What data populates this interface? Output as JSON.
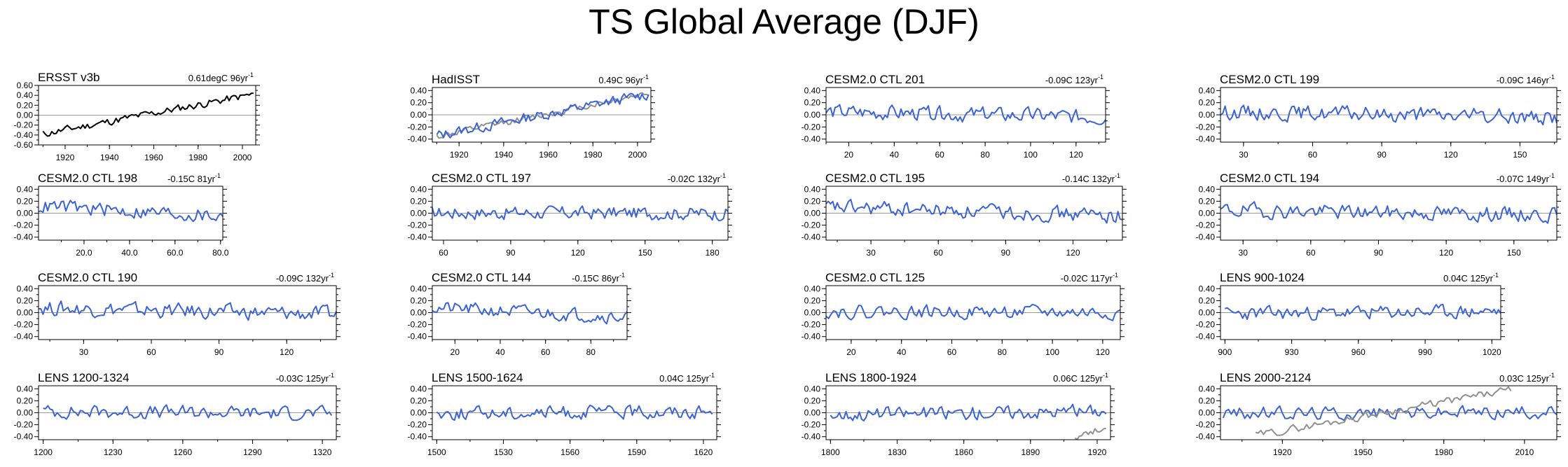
{
  "title": "TS Global Average (DJF)",
  "colors": {
    "model": "#3b63d6",
    "observed": "#000000",
    "overlay": "#909090",
    "zero_line": "#9a9a9a",
    "axes": "#000000"
  },
  "chart_data": [
    {
      "type": "line",
      "title": "ERSST v3b",
      "stat": "0.61degC 96yr",
      "stat_exp": "-1",
      "ylim": [
        -0.6,
        0.6
      ],
      "yticks": [
        -0.6,
        -0.4,
        -0.2,
        0,
        0.2,
        0.4,
        0.6
      ],
      "ytick_labels": [
        "-0.60",
        "-0.40",
        "-0.20",
        "0.00",
        "0.20",
        "0.40",
        "0.60"
      ],
      "xlim": [
        1908,
        2006
      ],
      "xticks": [
        1920,
        1940,
        1960,
        1980,
        2000
      ],
      "xtick_labels": [
        "1920",
        "1940",
        "1960",
        "1980",
        "2000"
      ],
      "series": [
        {
          "style": "observed",
          "x": [
            1910,
            2005
          ],
          "trend": [
            -0.38,
            0.42
          ],
          "amplitude": 0.07,
          "seed": 11
        }
      ]
    },
    {
      "type": "line",
      "title": "HadISST",
      "stat": "0.49C 96yr",
      "stat_exp": "-1",
      "ylim": [
        -0.45,
        0.45
      ],
      "yticks": [
        -0.4,
        -0.2,
        0,
        0.2,
        0.4
      ],
      "ytick_labels": [
        "-0.40",
        "-0.20",
        "0.00",
        "0.20",
        "0.40"
      ],
      "xlim": [
        1908,
        2006
      ],
      "xticks": [
        1920,
        1940,
        1960,
        1980,
        2000
      ],
      "xtick_labels": [
        "1920",
        "1940",
        "1960",
        "1980",
        "2000"
      ],
      "series": [
        {
          "style": "overlay",
          "x": [
            1910,
            2005
          ],
          "trend": [
            -0.36,
            0.36
          ],
          "amplitude": 0.05,
          "seed": 12
        },
        {
          "style": "model",
          "x": [
            1910,
            2005
          ],
          "trend": [
            -0.34,
            0.34
          ],
          "amplitude": 0.08,
          "seed": 13
        }
      ]
    },
    {
      "type": "line",
      "title": "CESM2.0 CTL 201",
      "stat": "-0.09C 123yr",
      "stat_exp": "-1",
      "ylim": [
        -0.45,
        0.45
      ],
      "yticks": [
        -0.4,
        -0.2,
        0,
        0.2,
        0.4
      ],
      "ytick_labels": [
        "-0.40",
        "-0.20",
        "0.00",
        "0.20",
        "0.40"
      ],
      "xlim": [
        10,
        133
      ],
      "xticks": [
        20,
        40,
        60,
        80,
        100,
        120
      ],
      "xtick_labels": [
        "20",
        "40",
        "60",
        "80",
        "100",
        "120"
      ],
      "series": [
        {
          "style": "model",
          "x": [
            10,
            133
          ],
          "trend": [
            0.05,
            -0.04
          ],
          "amplitude": 0.11,
          "seed": 14
        }
      ]
    },
    {
      "type": "line",
      "title": "CESM2.0 CTL 199",
      "stat": "-0.09C 146yr",
      "stat_exp": "-1",
      "ylim": [
        -0.45,
        0.45
      ],
      "yticks": [
        -0.4,
        -0.2,
        0,
        0.2,
        0.4
      ],
      "ytick_labels": [
        "-0.40",
        "-0.20",
        "0.00",
        "0.20",
        "0.40"
      ],
      "xlim": [
        20,
        166
      ],
      "xticks": [
        30,
        60,
        90,
        120,
        150
      ],
      "xtick_labels": [
        "30",
        "60",
        "90",
        "120",
        "150"
      ],
      "series": [
        {
          "style": "model",
          "x": [
            20,
            166
          ],
          "trend": [
            0.05,
            -0.04
          ],
          "amplitude": 0.11,
          "seed": 15
        }
      ]
    },
    {
      "type": "line",
      "title": "CESM2.0 CTL 198",
      "stat": "-0.15C 81yr",
      "stat_exp": "-1",
      "ylim": [
        -0.45,
        0.45
      ],
      "yticks": [
        -0.4,
        -0.2,
        0,
        0.2,
        0.4
      ],
      "ytick_labels": [
        "-0.40",
        "-0.20",
        "0.00",
        "0.20",
        "0.40"
      ],
      "xlim": [
        0,
        81
      ],
      "xticks": [
        20,
        40,
        60,
        80
      ],
      "xtick_labels": [
        "20.0",
        "40.0",
        "60.0",
        "80.0"
      ],
      "series": [
        {
          "style": "model",
          "x": [
            0,
            81
          ],
          "trend": [
            0.12,
            -0.05
          ],
          "amplitude": 0.11,
          "seed": 16
        }
      ]
    },
    {
      "type": "line",
      "title": "CESM2.0 CTL 197",
      "stat": "-0.02C 132yr",
      "stat_exp": "-1",
      "ylim": [
        -0.45,
        0.45
      ],
      "yticks": [
        -0.4,
        -0.2,
        0,
        0.2,
        0.4
      ],
      "ytick_labels": [
        "-0.40",
        "-0.20",
        "0.00",
        "0.20",
        "0.40"
      ],
      "xlim": [
        55,
        187
      ],
      "xticks": [
        60,
        90,
        120,
        150,
        180
      ],
      "xtick_labels": [
        "60",
        "90",
        "120",
        "150",
        "180"
      ],
      "series": [
        {
          "style": "model",
          "x": [
            55,
            187
          ],
          "trend": [
            0.01,
            0.0
          ],
          "amplitude": 0.1,
          "seed": 17
        }
      ]
    },
    {
      "type": "line",
      "title": "CESM2.0 CTL 195",
      "stat": "-0.14C 132yr",
      "stat_exp": "-1",
      "ylim": [
        -0.45,
        0.45
      ],
      "yticks": [
        -0.4,
        -0.2,
        0,
        0.2,
        0.4
      ],
      "ytick_labels": [
        "-0.40",
        "-0.20",
        "0.00",
        "0.20",
        "0.40"
      ],
      "xlim": [
        10,
        142
      ],
      "xticks": [
        30,
        60,
        90,
        120
      ],
      "xtick_labels": [
        "30",
        "60",
        "90",
        "120"
      ],
      "series": [
        {
          "style": "model",
          "x": [
            10,
            142
          ],
          "trend": [
            0.1,
            -0.04
          ],
          "amplitude": 0.11,
          "seed": 18
        }
      ]
    },
    {
      "type": "line",
      "title": "CESM2.0 CTL 194",
      "stat": "-0.07C 149yr",
      "stat_exp": "-1",
      "ylim": [
        -0.45,
        0.45
      ],
      "yticks": [
        -0.4,
        -0.2,
        0,
        0.2,
        0.4
      ],
      "ytick_labels": [
        "-0.40",
        "-0.20",
        "0.00",
        "0.20",
        "0.40"
      ],
      "xlim": [
        20,
        169
      ],
      "xticks": [
        30,
        60,
        90,
        120,
        150
      ],
      "xtick_labels": [
        "30",
        "60",
        "90",
        "120",
        "150"
      ],
      "series": [
        {
          "style": "model",
          "x": [
            20,
            169
          ],
          "trend": [
            0.05,
            -0.03
          ],
          "amplitude": 0.11,
          "seed": 19
        }
      ]
    },
    {
      "type": "line",
      "title": "CESM2.0 CTL 190",
      "stat": "-0.09C 132yr",
      "stat_exp": "-1",
      "ylim": [
        -0.45,
        0.45
      ],
      "yticks": [
        -0.4,
        -0.2,
        0,
        0.2,
        0.4
      ],
      "ytick_labels": [
        "-0.40",
        "-0.20",
        "0.00",
        "0.20",
        "0.40"
      ],
      "xlim": [
        10,
        142
      ],
      "xticks": [
        30,
        60,
        90,
        120
      ],
      "xtick_labels": [
        "30",
        "60",
        "90",
        "120"
      ],
      "series": [
        {
          "style": "model",
          "x": [
            10,
            142
          ],
          "trend": [
            0.08,
            -0.03
          ],
          "amplitude": 0.11,
          "seed": 20
        }
      ]
    },
    {
      "type": "line",
      "title": "CESM2.0 CTL 144",
      "stat": "-0.15C 86yr",
      "stat_exp": "-1",
      "ylim": [
        -0.45,
        0.45
      ],
      "yticks": [
        -0.4,
        -0.2,
        0,
        0.2,
        0.4
      ],
      "ytick_labels": [
        "-0.40",
        "-0.20",
        "0.00",
        "0.20",
        "0.40"
      ],
      "xlim": [
        10,
        96
      ],
      "xticks": [
        20,
        40,
        60,
        80
      ],
      "xtick_labels": [
        "20",
        "40",
        "60",
        "80"
      ],
      "series": [
        {
          "style": "model",
          "x": [
            10,
            96
          ],
          "trend": [
            0.08,
            -0.07
          ],
          "amplitude": 0.1,
          "seed": 21
        }
      ]
    },
    {
      "type": "line",
      "title": "CESM2.0 CTL 125",
      "stat": "-0.02C 117yr",
      "stat_exp": "-1",
      "ylim": [
        -0.45,
        0.45
      ],
      "yticks": [
        -0.4,
        -0.2,
        0,
        0.2,
        0.4
      ],
      "ytick_labels": [
        "-0.40",
        "-0.20",
        "0.00",
        "0.20",
        "0.40"
      ],
      "xlim": [
        10,
        127
      ],
      "xticks": [
        20,
        40,
        60,
        80,
        100,
        120
      ],
      "xtick_labels": [
        "20",
        "40",
        "60",
        "80",
        "100",
        "120"
      ],
      "series": [
        {
          "style": "model",
          "x": [
            10,
            127
          ],
          "trend": [
            0.02,
            0.0
          ],
          "amplitude": 0.1,
          "seed": 22
        }
      ]
    },
    {
      "type": "line",
      "title": "LENS 900-1024",
      "stat": "0.04C 125yr",
      "stat_exp": "-1",
      "ylim": [
        -0.45,
        0.45
      ],
      "yticks": [
        -0.4,
        -0.2,
        0,
        0.2,
        0.4
      ],
      "ytick_labels": [
        "-0.40",
        "-0.20",
        "0.00",
        "0.20",
        "0.40"
      ],
      "xlim": [
        898,
        1024
      ],
      "xticks": [
        900,
        930,
        960,
        990,
        1020
      ],
      "xtick_labels": [
        "900",
        "930",
        "960",
        "990",
        "1020"
      ],
      "series": [
        {
          "style": "model",
          "x": [
            900,
            1024
          ],
          "trend": [
            -0.02,
            0.02
          ],
          "amplitude": 0.1,
          "seed": 23
        }
      ]
    },
    {
      "type": "line",
      "title": "LENS 1200-1324",
      "stat": "-0.03C 125yr",
      "stat_exp": "-1",
      "ylim": [
        -0.45,
        0.45
      ],
      "yticks": [
        -0.4,
        -0.2,
        0,
        0.2,
        0.4
      ],
      "ytick_labels": [
        "-0.40",
        "-0.20",
        "0.00",
        "0.20",
        "0.40"
      ],
      "xlim": [
        1198,
        1326
      ],
      "xticks": [
        1200,
        1230,
        1260,
        1290,
        1320
      ],
      "xtick_labels": [
        "1200",
        "1230",
        "1260",
        "1290",
        "1320"
      ],
      "series": [
        {
          "style": "model",
          "x": [
            1200,
            1324
          ],
          "trend": [
            0.02,
            -0.01
          ],
          "amplitude": 0.1,
          "seed": 24
        }
      ]
    },
    {
      "type": "line",
      "title": "LENS 1500-1624",
      "stat": "0.04C 125yr",
      "stat_exp": "-1",
      "ylim": [
        -0.45,
        0.45
      ],
      "yticks": [
        -0.4,
        -0.2,
        0,
        0.2,
        0.4
      ],
      "ytick_labels": [
        "-0.40",
        "-0.20",
        "0.00",
        "0.20",
        "0.40"
      ],
      "xlim": [
        1498,
        1626
      ],
      "xticks": [
        1500,
        1530,
        1560,
        1590,
        1620
      ],
      "xtick_labels": [
        "1500",
        "1530",
        "1560",
        "1590",
        "1620"
      ],
      "series": [
        {
          "style": "model",
          "x": [
            1500,
            1624
          ],
          "trend": [
            -0.01,
            0.02
          ],
          "amplitude": 0.1,
          "seed": 25
        }
      ]
    },
    {
      "type": "line",
      "title": "LENS 1800-1924",
      "stat": "0.06C 125yr",
      "stat_exp": "-1",
      "ylim": [
        -0.45,
        0.45
      ],
      "yticks": [
        -0.4,
        -0.2,
        0,
        0.2,
        0.4
      ],
      "ytick_labels": [
        "-0.40",
        "-0.20",
        "0.00",
        "0.20",
        "0.40"
      ],
      "xlim": [
        1798,
        1926
      ],
      "xticks": [
        1800,
        1830,
        1860,
        1890,
        1920
      ],
      "xtick_labels": [
        "1800",
        "1830",
        "1860",
        "1890",
        "1920"
      ],
      "series": [
        {
          "style": "model",
          "x": [
            1800,
            1924
          ],
          "trend": [
            -0.03,
            0.03
          ],
          "amplitude": 0.1,
          "seed": 26
        },
        {
          "style": "overlay",
          "x": [
            1910,
            1924
          ],
          "trend": [
            -0.4,
            -0.24
          ],
          "amplitude": 0.05,
          "seed": 27
        }
      ]
    },
    {
      "type": "line",
      "title": "LENS 2000-2124",
      "stat": "0.03C 125yr",
      "stat_exp": "-1",
      "ylim": [
        -0.45,
        0.45
      ],
      "yticks": [
        -0.4,
        -0.2,
        0,
        0.2,
        0.4
      ],
      "ytick_labels": [
        "-0.40",
        "-0.20",
        "0.00",
        "0.20",
        "0.40"
      ],
      "xlim": [
        1897,
        2022
      ],
      "xticks": [
        1920,
        1950,
        1980,
        2010
      ],
      "xtick_labels": [
        "1920",
        "1950",
        "1980",
        "2010"
      ],
      "series": [
        {
          "style": "model",
          "x": [
            1898,
            2022
          ],
          "trend": [
            -0.01,
            0.02
          ],
          "amplitude": 0.1,
          "seed": 28
        },
        {
          "style": "overlay",
          "x": [
            1910,
            2005
          ],
          "trend": [
            -0.38,
            0.38
          ],
          "amplitude": 0.06,
          "seed": 29
        }
      ]
    }
  ]
}
